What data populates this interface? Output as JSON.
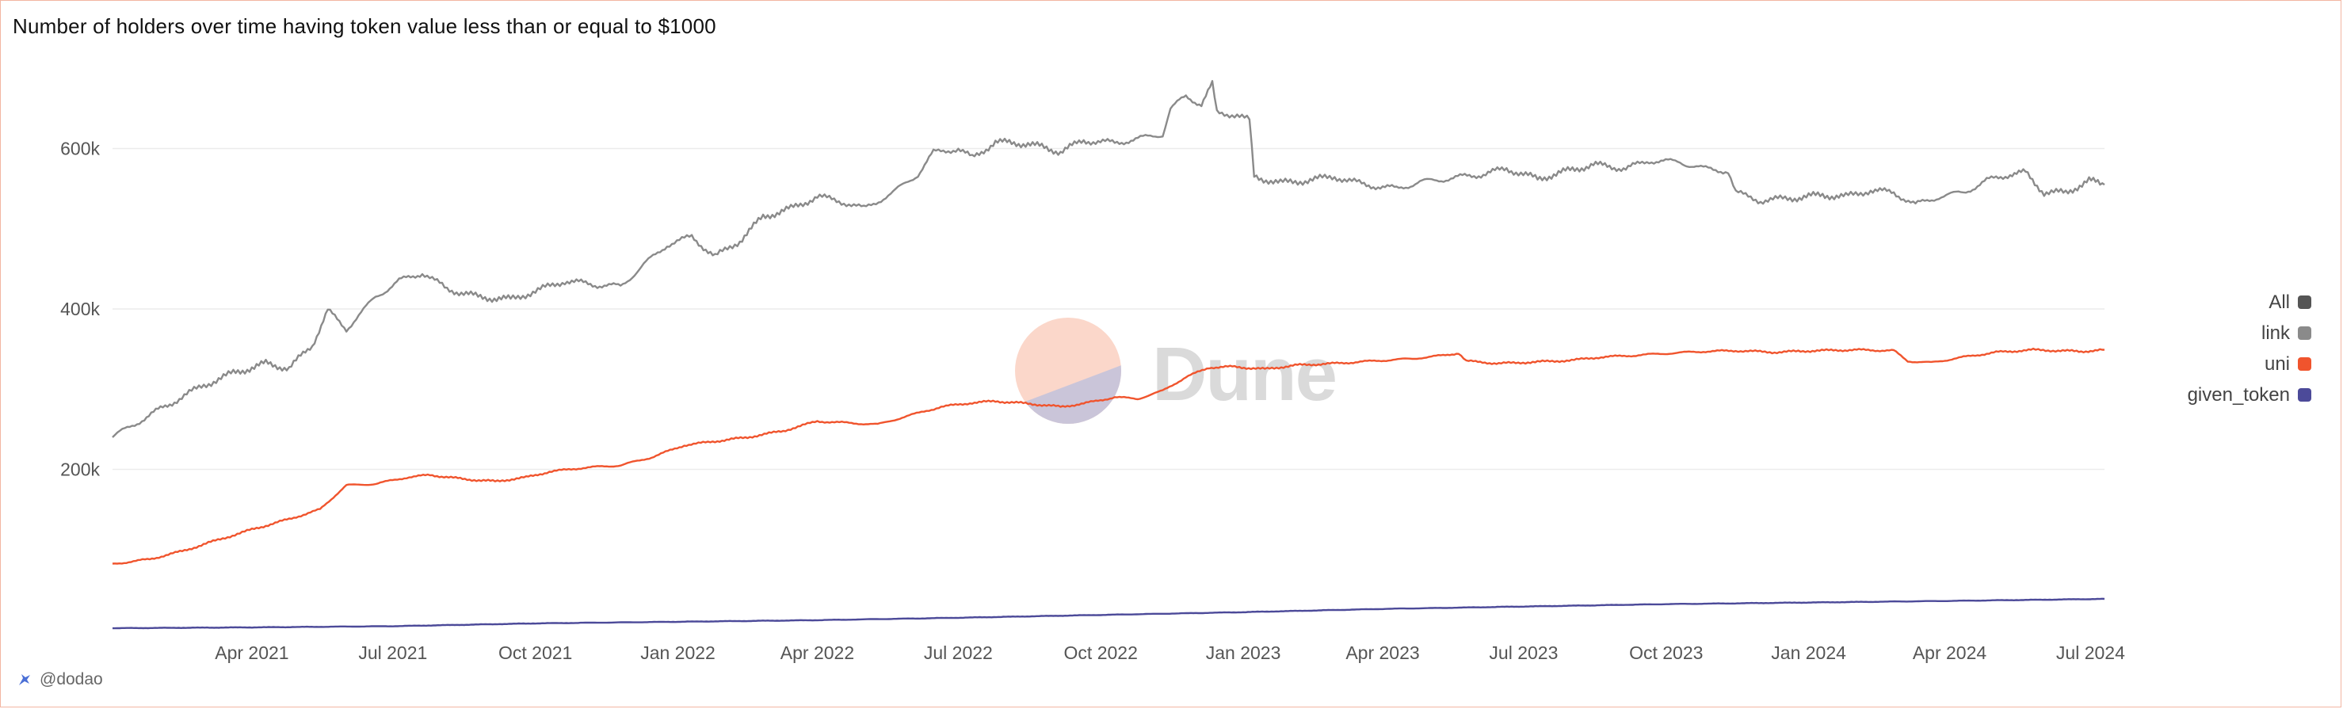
{
  "title": "Number of holders over time having token value less than or equal to $1000",
  "footer": {
    "handle": "@dodao"
  },
  "watermark": {
    "text": "Dune"
  },
  "legend": [
    {
      "label": "All",
      "color": "#555555"
    },
    {
      "label": "link",
      "color": "#8a8a8a"
    },
    {
      "label": "uni",
      "color": "#f0542d"
    },
    {
      "label": "given_token",
      "color": "#4c4a99"
    }
  ],
  "chart_data": {
    "type": "line",
    "title": "Number of holders over time having token value less than or equal to $1000",
    "xlabel": "",
    "ylabel": "",
    "x_range": [
      "2021-01-01",
      "2024-07-10"
    ],
    "ylim": [
      0,
      700000
    ],
    "yticks": [
      {
        "value": 200000,
        "label": "200k"
      },
      {
        "value": 400000,
        "label": "400k"
      },
      {
        "value": 600000,
        "label": "600k"
      }
    ],
    "xticks": [
      {
        "date": "2021-04-01",
        "label": "Apr 2021"
      },
      {
        "date": "2021-07-01",
        "label": "Jul 2021"
      },
      {
        "date": "2021-10-01",
        "label": "Oct 2021"
      },
      {
        "date": "2022-01-01",
        "label": "Jan 2022"
      },
      {
        "date": "2022-04-01",
        "label": "Apr 2022"
      },
      {
        "date": "2022-07-01",
        "label": "Jul 2022"
      },
      {
        "date": "2022-10-01",
        "label": "Oct 2022"
      },
      {
        "date": "2023-01-01",
        "label": "Jan 2023"
      },
      {
        "date": "2023-04-01",
        "label": "Apr 2023"
      },
      {
        "date": "2023-07-01",
        "label": "Jul 2023"
      },
      {
        "date": "2023-10-01",
        "label": "Oct 2023"
      },
      {
        "date": "2024-01-01",
        "label": "Jan 2024"
      },
      {
        "date": "2024-04-01",
        "label": "Apr 2024"
      },
      {
        "date": "2024-07-01",
        "label": "Jul 2024"
      }
    ],
    "grid": true,
    "legend_position": "right",
    "series": [
      {
        "name": "link",
        "color": "#8a8a8a",
        "points": [
          [
            "2021-01-01",
            240000
          ],
          [
            "2021-01-20",
            262000
          ],
          [
            "2021-02-10",
            285000
          ],
          [
            "2021-03-01",
            305000
          ],
          [
            "2021-03-20",
            320000
          ],
          [
            "2021-04-10",
            332000
          ],
          [
            "2021-04-25",
            326000
          ],
          [
            "2021-05-10",
            355000
          ],
          [
            "2021-05-20",
            398000
          ],
          [
            "2021-06-01",
            375000
          ],
          [
            "2021-06-20",
            415000
          ],
          [
            "2021-07-05",
            435000
          ],
          [
            "2021-07-20",
            445000
          ],
          [
            "2021-08-05",
            425000
          ],
          [
            "2021-08-25",
            415000
          ],
          [
            "2021-09-15",
            412000
          ],
          [
            "2021-10-01",
            422000
          ],
          [
            "2021-10-20",
            435000
          ],
          [
            "2021-11-10",
            430000
          ],
          [
            "2021-11-25",
            428000
          ],
          [
            "2021-12-10",
            455000
          ],
          [
            "2021-12-25",
            480000
          ],
          [
            "2022-01-10",
            490000
          ],
          [
            "2022-01-25",
            465000
          ],
          [
            "2022-02-10",
            485000
          ],
          [
            "2022-02-25",
            515000
          ],
          [
            "2022-03-15",
            525000
          ],
          [
            "2022-04-01",
            540000
          ],
          [
            "2022-04-15",
            535000
          ],
          [
            "2022-05-01",
            525000
          ],
          [
            "2022-05-20",
            545000
          ],
          [
            "2022-06-05",
            568000
          ],
          [
            "2022-06-15",
            595000
          ],
          [
            "2022-07-01",
            600000
          ],
          [
            "2022-07-10",
            588000
          ],
          [
            "2022-07-25",
            608000
          ],
          [
            "2022-08-15",
            606000
          ],
          [
            "2022-09-05",
            596000
          ],
          [
            "2022-09-20",
            610000
          ],
          [
            "2022-10-10",
            607000
          ],
          [
            "2022-10-25",
            612000
          ],
          [
            "2022-11-10",
            618000
          ],
          [
            "2022-11-15",
            650000
          ],
          [
            "2022-11-25",
            665000
          ],
          [
            "2022-12-05",
            655000
          ],
          [
            "2022-12-12",
            680000
          ],
          [
            "2022-12-15",
            645000
          ],
          [
            "2022-12-28",
            642000
          ],
          [
            "2023-01-05",
            635000
          ],
          [
            "2023-01-08",
            565000
          ],
          [
            "2023-01-25",
            557000
          ],
          [
            "2023-02-10",
            560000
          ],
          [
            "2023-03-01",
            565000
          ],
          [
            "2023-03-20",
            555000
          ],
          [
            "2023-04-10",
            550000
          ],
          [
            "2023-04-25",
            558000
          ],
          [
            "2023-05-15",
            563000
          ],
          [
            "2023-06-05",
            568000
          ],
          [
            "2023-06-20",
            575000
          ],
          [
            "2023-07-10",
            562000
          ],
          [
            "2023-07-25",
            570000
          ],
          [
            "2023-08-15",
            580000
          ],
          [
            "2023-09-05",
            575000
          ],
          [
            "2023-09-20",
            585000
          ],
          [
            "2023-10-10",
            583000
          ],
          [
            "2023-10-25",
            575000
          ],
          [
            "2023-11-10",
            572000
          ],
          [
            "2023-11-15",
            545000
          ],
          [
            "2023-12-01",
            535000
          ],
          [
            "2023-12-20",
            538000
          ],
          [
            "2024-01-10",
            542000
          ],
          [
            "2024-01-25",
            540000
          ],
          [
            "2024-02-10",
            548000
          ],
          [
            "2024-02-25",
            545000
          ],
          [
            "2024-03-10",
            530000
          ],
          [
            "2024-03-25",
            540000
          ],
          [
            "2024-04-10",
            545000
          ],
          [
            "2024-04-25",
            560000
          ],
          [
            "2024-05-10",
            568000
          ],
          [
            "2024-05-20",
            570000
          ],
          [
            "2024-06-01",
            545000
          ],
          [
            "2024-06-15",
            545000
          ],
          [
            "2024-06-30",
            560000
          ],
          [
            "2024-07-10",
            555000
          ]
        ]
      },
      {
        "name": "uni",
        "color": "#f0542d",
        "points": [
          [
            "2021-01-01",
            82000
          ],
          [
            "2021-01-25",
            88000
          ],
          [
            "2021-02-15",
            98000
          ],
          [
            "2021-03-10",
            112000
          ],
          [
            "2021-04-01",
            125000
          ],
          [
            "2021-04-25",
            138000
          ],
          [
            "2021-05-15",
            150000
          ],
          [
            "2021-05-25",
            168000
          ],
          [
            "2021-06-01",
            180000
          ],
          [
            "2021-06-20",
            182000
          ],
          [
            "2021-07-10",
            190000
          ],
          [
            "2021-07-25",
            193000
          ],
          [
            "2021-08-15",
            188000
          ],
          [
            "2021-09-05",
            185000
          ],
          [
            "2021-09-25",
            190000
          ],
          [
            "2021-10-10",
            197000
          ],
          [
            "2021-11-01",
            202000
          ],
          [
            "2021-11-25",
            205000
          ],
          [
            "2021-12-15",
            215000
          ],
          [
            "2022-01-05",
            230000
          ],
          [
            "2022-01-25",
            235000
          ],
          [
            "2022-02-15",
            240000
          ],
          [
            "2022-03-10",
            248000
          ],
          [
            "2022-04-01",
            260000
          ],
          [
            "2022-04-20",
            258000
          ],
          [
            "2022-05-10",
            256000
          ],
          [
            "2022-06-01",
            268000
          ],
          [
            "2022-06-20",
            278000
          ],
          [
            "2022-07-10",
            283000
          ],
          [
            "2022-07-25",
            285000
          ],
          [
            "2022-08-15",
            282000
          ],
          [
            "2022-09-05",
            278000
          ],
          [
            "2022-09-20",
            282000
          ],
          [
            "2022-10-10",
            290000
          ],
          [
            "2022-10-25",
            288000
          ],
          [
            "2022-11-10",
            298000
          ],
          [
            "2022-11-25",
            315000
          ],
          [
            "2022-12-10",
            327000
          ],
          [
            "2022-12-25",
            328000
          ],
          [
            "2023-01-15",
            325000
          ],
          [
            "2023-02-05",
            330000
          ],
          [
            "2023-03-01",
            332000
          ],
          [
            "2023-03-25",
            335000
          ],
          [
            "2023-04-20",
            338000
          ],
          [
            "2023-05-10",
            342000
          ],
          [
            "2023-05-20",
            345000
          ],
          [
            "2023-05-25",
            335000
          ],
          [
            "2023-06-15",
            332000
          ],
          [
            "2023-07-10",
            334000
          ],
          [
            "2023-08-01",
            336000
          ],
          [
            "2023-08-20",
            340000
          ],
          [
            "2023-09-10",
            342000
          ],
          [
            "2023-10-05",
            345000
          ],
          [
            "2023-10-25",
            347000
          ],
          [
            "2023-11-15",
            348000
          ],
          [
            "2023-12-10",
            346000
          ],
          [
            "2024-01-05",
            348000
          ],
          [
            "2024-02-01",
            349000
          ],
          [
            "2024-02-25",
            348000
          ],
          [
            "2024-03-05",
            335000
          ],
          [
            "2024-03-20",
            333000
          ],
          [
            "2024-04-10",
            340000
          ],
          [
            "2024-05-01",
            346000
          ],
          [
            "2024-05-25",
            349000
          ],
          [
            "2024-06-10",
            348000
          ],
          [
            "2024-06-25",
            347000
          ],
          [
            "2024-07-10",
            349000
          ]
        ]
      },
      {
        "name": "given_token",
        "color": "#4c4a99",
        "points": [
          [
            "2021-01-01",
            2000
          ],
          [
            "2021-04-01",
            3000
          ],
          [
            "2021-07-01",
            4500
          ],
          [
            "2021-10-01",
            8000
          ],
          [
            "2022-01-01",
            10000
          ],
          [
            "2022-04-01",
            12000
          ],
          [
            "2022-07-01",
            15000
          ],
          [
            "2022-10-01",
            18500
          ],
          [
            "2023-01-01",
            22000
          ],
          [
            "2023-04-01",
            26000
          ],
          [
            "2023-07-01",
            29000
          ],
          [
            "2023-10-01",
            32000
          ],
          [
            "2024-01-01",
            34000
          ],
          [
            "2024-04-01",
            36000
          ],
          [
            "2024-07-10",
            38500
          ]
        ]
      }
    ]
  }
}
